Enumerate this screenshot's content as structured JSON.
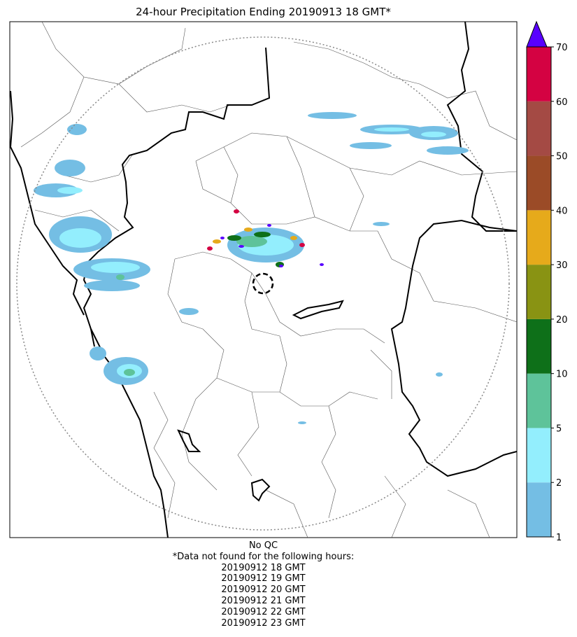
{
  "title": "24-hour Precipitation Ending 20190913 18 GMT*",
  "colorbar": {
    "levels": [
      {
        "value": "1",
        "color": "#74bee4"
      },
      {
        "value": "2",
        "color": "#93eefd"
      },
      {
        "value": "5",
        "color": "#5ec39a"
      },
      {
        "value": "10",
        "color": "#0e7019"
      },
      {
        "value": "20",
        "color": "#899313"
      },
      {
        "value": "30",
        "color": "#e6aa1b"
      },
      {
        "value": "40",
        "color": "#9b4b27"
      },
      {
        "value": "50",
        "color": "#a44a44"
      },
      {
        "value": "60",
        "color": "#d40242"
      }
    ],
    "top_label": "70",
    "overflow_color": "#5800ff"
  },
  "footer": {
    "qc": "No QC",
    "note": "*Data not found for the following hours:",
    "hours": [
      "20190912 18 GMT",
      "20190912 19 GMT",
      "20190912 20 GMT",
      "20190912 21 GMT",
      "20190912 22 GMT",
      "20190912 23 GMT"
    ]
  }
}
